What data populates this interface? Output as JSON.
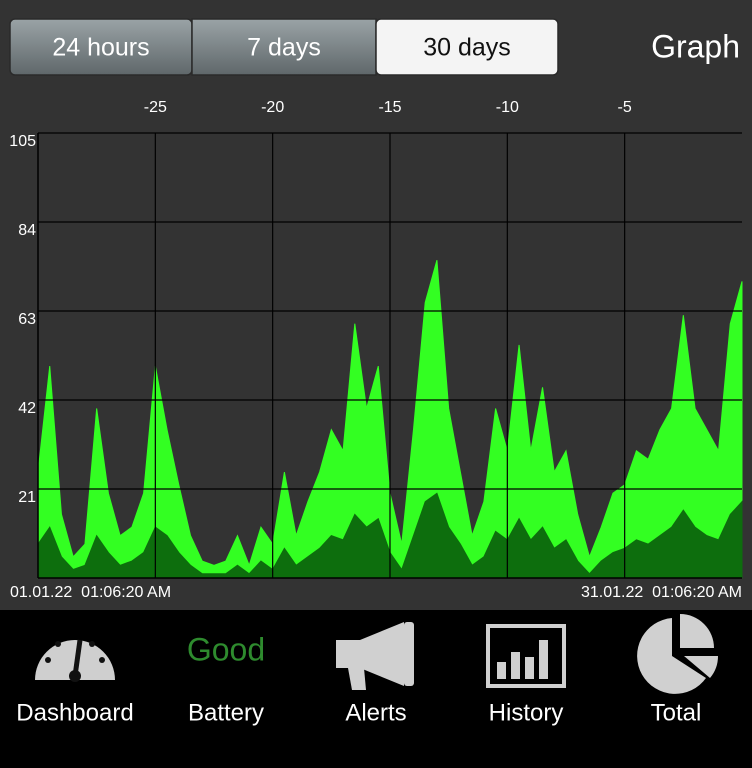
{
  "header": {
    "tabs": [
      "24 hours",
      "7 days",
      "30 days"
    ],
    "selected_tab": 2,
    "title": "Graph"
  },
  "chart_data": {
    "type": "area",
    "x": [
      -30,
      -29.5,
      -29,
      -28.5,
      -28,
      -27.5,
      -27,
      -26.5,
      -26,
      -25.5,
      -25,
      -24.5,
      -24,
      -23.5,
      -23,
      -22.5,
      -22,
      -21.5,
      -21,
      -20.5,
      -20,
      -19.5,
      -19,
      -18.5,
      -18,
      -17.5,
      -17,
      -16.5,
      -16,
      -15.5,
      -15,
      -14.5,
      -14,
      -13.5,
      -13,
      -12.5,
      -12,
      -11.5,
      -11,
      -10.5,
      -10,
      -9.5,
      -9,
      -8.5,
      -8,
      -7.5,
      -7,
      -6.5,
      -6,
      -5.5,
      -5,
      -4.5,
      -4,
      -3.5,
      -3,
      -2.5,
      -2,
      -1.5,
      -1,
      -0.5,
      0
    ],
    "series": [
      {
        "color": "#33ff22",
        "values": [
          25,
          50,
          15,
          5,
          8,
          40,
          20,
          10,
          12,
          20,
          50,
          35,
          22,
          10,
          4,
          3,
          4,
          10,
          3,
          12,
          8,
          25,
          10,
          18,
          25,
          35,
          30,
          60,
          40,
          50,
          20,
          8,
          35,
          65,
          75,
          40,
          25,
          10,
          18,
          40,
          30,
          55,
          30,
          45,
          25,
          30,
          15,
          5,
          12,
          20,
          22,
          30,
          28,
          35,
          40,
          62,
          40,
          35,
          30,
          60,
          70
        ]
      },
      {
        "color": "#0d6e0d",
        "values": [
          8,
          12,
          5,
          2,
          3,
          10,
          6,
          3,
          4,
          6,
          12,
          10,
          6,
          3,
          1,
          1,
          1,
          3,
          1,
          4,
          2,
          7,
          3,
          5,
          7,
          10,
          9,
          15,
          12,
          14,
          6,
          2,
          10,
          18,
          20,
          12,
          8,
          3,
          5,
          11,
          9,
          14,
          9,
          12,
          7,
          9,
          4,
          1,
          4,
          6,
          7,
          9,
          8,
          10,
          12,
          16,
          12,
          10,
          9,
          15,
          18
        ]
      }
    ],
    "xlim": [
      -30,
      0
    ],
    "xticks": [
      -25,
      -20,
      -15,
      -10,
      -5
    ],
    "ylim": [
      0,
      105
    ],
    "yticks": [
      21,
      42,
      63,
      84,
      105
    ],
    "grid": true,
    "x_start_label": "01.01.22  01:06:20 AM",
    "x_end_label": "31.01.22  01:06:20 AM"
  },
  "nav": {
    "status": "Good",
    "items": [
      "Dashboard",
      "Battery",
      "Alerts",
      "History",
      "Total"
    ]
  }
}
